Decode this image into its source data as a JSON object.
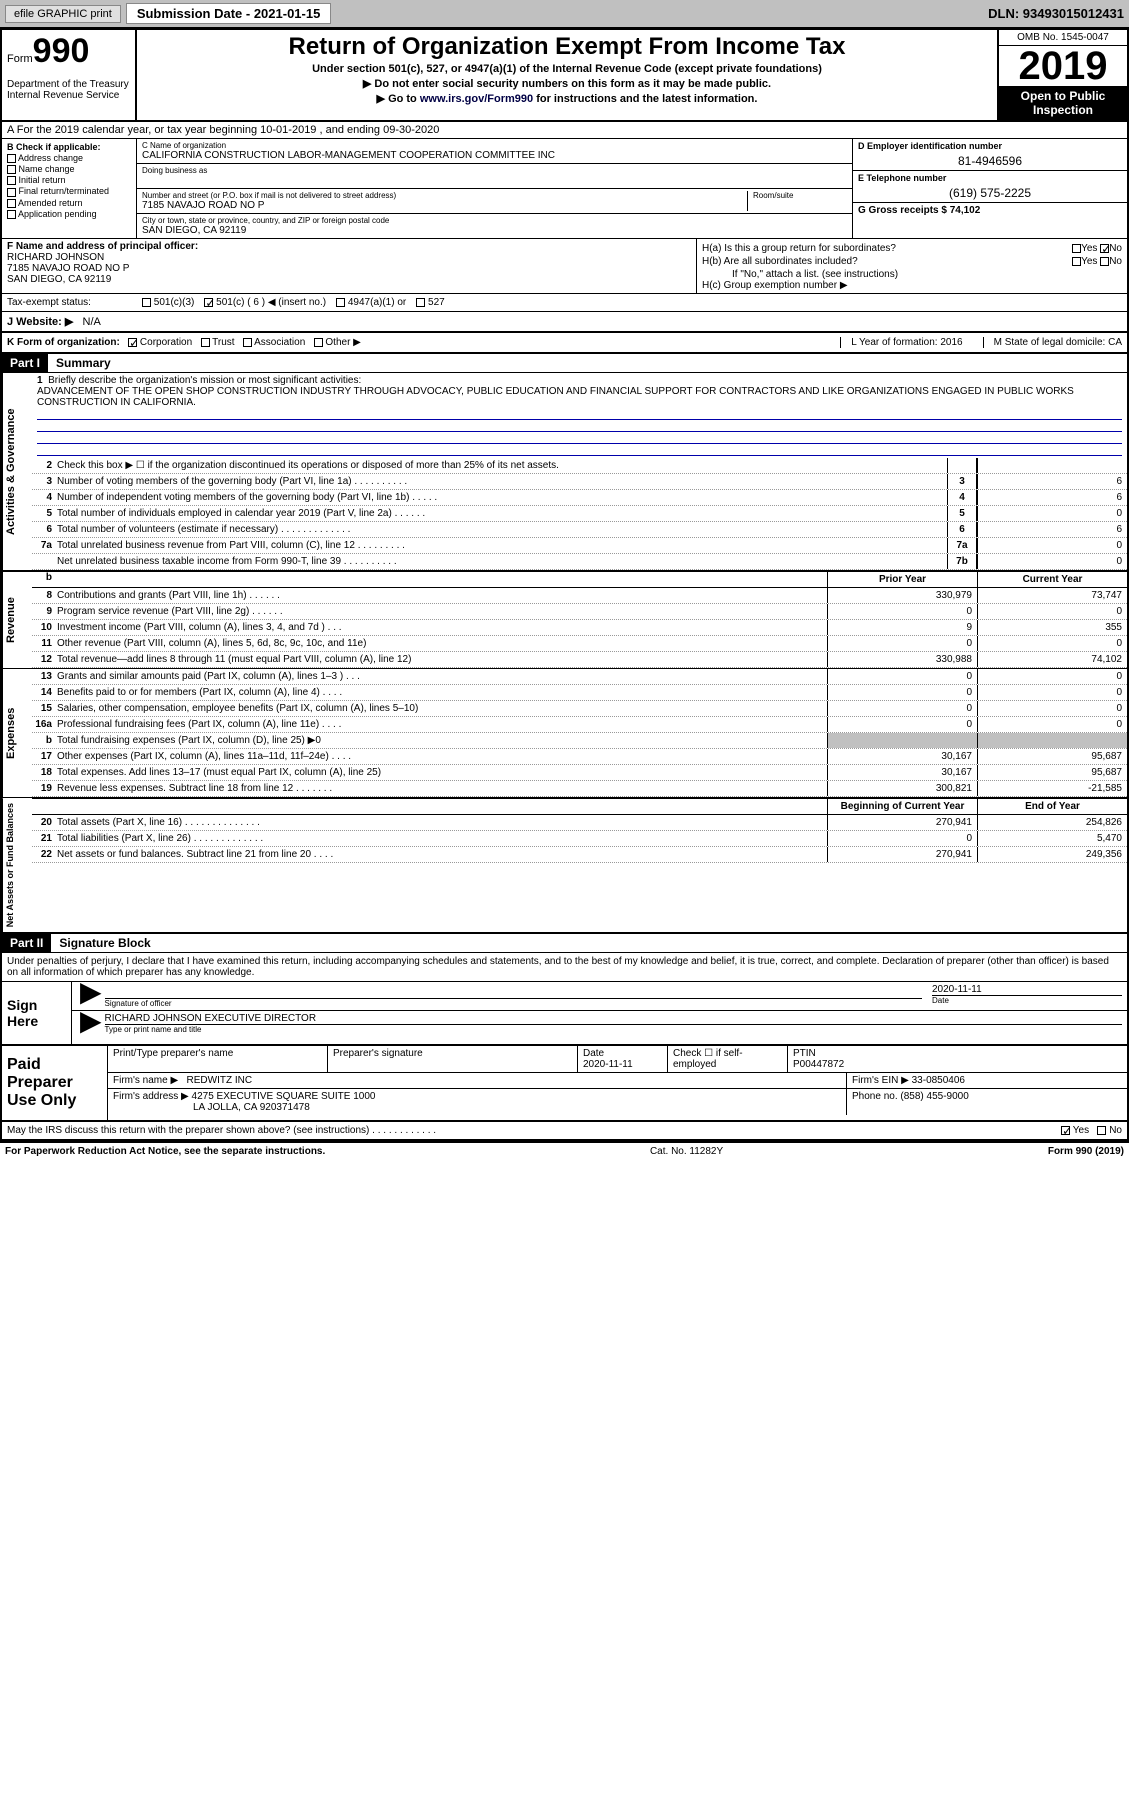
{
  "topbar": {
    "efile": "efile GRAPHIC print",
    "sub_label": "Submission Date - 2021-01-15",
    "dln": "DLN: 93493015012431"
  },
  "header": {
    "form_label": "Form",
    "form_num": "990",
    "dept": "Department of the Treasury Internal Revenue Service",
    "title": "Return of Organization Exempt From Income Tax",
    "sub1": "Under section 501(c), 527, or 4947(a)(1) of the Internal Revenue Code (except private foundations)",
    "sub2": "▶ Do not enter social security numbers on this form as it may be made public.",
    "sub3": "▶ Go to www.irs.gov/Form990 for instructions and the latest information.",
    "omb": "OMB No. 1545-0047",
    "year": "2019",
    "open": "Open to Public Inspection"
  },
  "lineA": "A For the 2019 calendar year, or tax year beginning 10-01-2019   , and ending 09-30-2020",
  "boxB": {
    "hdr": "B Check if applicable:",
    "items": [
      "Address change",
      "Name change",
      "Initial return",
      "Final return/terminated",
      "Amended return",
      "Application pending"
    ]
  },
  "boxC": {
    "name_lbl": "C Name of organization",
    "name": "CALIFORNIA CONSTRUCTION LABOR-MANAGEMENT COOPERATION COMMITTEE INC",
    "dba_lbl": "Doing business as",
    "addr_lbl": "Number and street (or P.O. box if mail is not delivered to street address)",
    "room_lbl": "Room/suite",
    "addr": "7185 NAVAJO ROAD NO P",
    "city_lbl": "City or town, state or province, country, and ZIP or foreign postal code",
    "city": "SAN DIEGO, CA  92119"
  },
  "boxD": {
    "lbl": "D Employer identification number",
    "val": "81-4946596"
  },
  "boxE": {
    "lbl": "E Telephone number",
    "val": "(619) 575-2225"
  },
  "boxG": "G Gross receipts $ 74,102",
  "boxF": {
    "lbl": "F  Name and address of principal officer:",
    "name": "RICHARD JOHNSON",
    "addr1": "7185 NAVAJO ROAD NO P",
    "addr2": "SAN DIEGO, CA  92119"
  },
  "boxH": {
    "a": "H(a)  Is this a group return for subordinates?",
    "b": "H(b)  Are all subordinates included?",
    "note": "If \"No,\" attach a list. (see instructions)",
    "c": "H(c)  Group exemption number ▶",
    "yes": "Yes",
    "no": "No"
  },
  "taxline": {
    "lbl": "Tax-exempt status:",
    "c3": "501(c)(3)",
    "c": "501(c) ( 6 ) ◀ (insert no.)",
    "a1": "4947(a)(1) or",
    "s527": "527"
  },
  "website": {
    "lbl": "J  Website: ▶",
    "val": "N/A"
  },
  "lineK": {
    "k": "K Form of organization:",
    "corp": "Corporation",
    "trust": "Trust",
    "assoc": "Association",
    "other": "Other ▶",
    "l": "L Year of formation: 2016",
    "m": "M State of legal domicile: CA"
  },
  "part1": {
    "hdr": "Part I",
    "title": "Summary"
  },
  "mission": {
    "num": "1",
    "lbl": "Briefly describe the organization's mission or most significant activities:",
    "text": "ADVANCEMENT OF THE OPEN SHOP CONSTRUCTION INDUSTRY THROUGH ADVOCACY, PUBLIC EDUCATION AND FINANCIAL SUPPORT FOR CONTRACTORS AND LIKE ORGANIZATIONS ENGAGED IN PUBLIC WORKS CONSTRUCTION IN CALIFORNIA."
  },
  "gov_lines": [
    {
      "n": "2",
      "d": "Check this box ▶ ☐  if the organization discontinued its operations or disposed of more than 25% of its net assets.",
      "box": "",
      "v": ""
    },
    {
      "n": "3",
      "d": "Number of voting members of the governing body (Part VI, line 1a)  .   .   .   .   .   .   .   .   .   .",
      "box": "3",
      "v": "6"
    },
    {
      "n": "4",
      "d": "Number of independent voting members of the governing body (Part VI, line 1b)   .   .   .   .   .",
      "box": "4",
      "v": "6"
    },
    {
      "n": "5",
      "d": "Total number of individuals employed in calendar year 2019 (Part V, line 2a)   .   .   .   .   .   .",
      "box": "5",
      "v": "0"
    },
    {
      "n": "6",
      "d": "Total number of volunteers (estimate if necessary)    .    .    .    .    .    .    .    .    .    .    .    .    .",
      "box": "6",
      "v": "6"
    },
    {
      "n": "7a",
      "d": "Total unrelated business revenue from Part VIII, column (C), line 12   .   .   .   .   .   .   .   .   .",
      "box": "7a",
      "v": "0"
    },
    {
      "n": "",
      "d": "Net unrelated business taxable income from Form 990-T, line 39   .   .   .   .   .   .   .   .   .   .",
      "box": "7b",
      "v": "0"
    }
  ],
  "yr_hdr": {
    "b": "b",
    "py": "Prior Year",
    "cy": "Current Year"
  },
  "rev_lines": [
    {
      "n": "8",
      "d": "Contributions and grants (Part VIII, line 1h)   .   .   .   .   .   .",
      "py": "330,979",
      "cy": "73,747"
    },
    {
      "n": "9",
      "d": "Program service revenue (Part VIII, line 2g)    .    .    .    .    .    .",
      "py": "0",
      "cy": "0"
    },
    {
      "n": "10",
      "d": "Investment income (Part VIII, column (A), lines 3, 4, and 7d )    .    .    .",
      "py": "9",
      "cy": "355"
    },
    {
      "n": "11",
      "d": "Other revenue (Part VIII, column (A), lines 5, 6d, 8c, 9c, 10c, and 11e)",
      "py": "0",
      "cy": "0"
    },
    {
      "n": "12",
      "d": "Total revenue—add lines 8 through 11 (must equal Part VIII, column (A), line 12)",
      "py": "330,988",
      "cy": "74,102"
    }
  ],
  "exp_lines": [
    {
      "n": "13",
      "d": "Grants and similar amounts paid (Part IX, column (A), lines 1–3 )   .   .   .",
      "py": "0",
      "cy": "0"
    },
    {
      "n": "14",
      "d": "Benefits paid to or for members (Part IX, column (A), line 4)   .   .   .   .",
      "py": "0",
      "cy": "0"
    },
    {
      "n": "15",
      "d": "Salaries, other compensation, employee benefits (Part IX, column (A), lines 5–10)",
      "py": "0",
      "cy": "0"
    },
    {
      "n": "16a",
      "d": "Professional fundraising fees (Part IX, column (A), line 11e)   .   .   .   .",
      "py": "0",
      "cy": "0"
    },
    {
      "n": "b",
      "d": "Total fundraising expenses (Part IX, column (D), line 25) ▶0",
      "py": "",
      "cy": "",
      "grey": true
    },
    {
      "n": "17",
      "d": "Other expenses (Part IX, column (A), lines 11a–11d, 11f–24e)   .   .   .   .",
      "py": "30,167",
      "cy": "95,687"
    },
    {
      "n": "18",
      "d": "Total expenses. Add lines 13–17 (must equal Part IX, column (A), line 25)",
      "py": "30,167",
      "cy": "95,687"
    },
    {
      "n": "19",
      "d": "Revenue less expenses. Subtract line 18 from line 12  .   .   .   .   .   .   .",
      "py": "300,821",
      "cy": "-21,585"
    }
  ],
  "na_hdr": {
    "boy": "Beginning of Current Year",
    "eoy": "End of Year"
  },
  "na_lines": [
    {
      "n": "20",
      "d": "Total assets (Part X, line 16)   .   .   .   .   .   .   .   .   .   .   .   .   .   .",
      "py": "270,941",
      "cy": "254,826"
    },
    {
      "n": "21",
      "d": "Total liabilities (Part X, line 26)    .    .    .    .    .    .    .    .    .    .    .    .    .",
      "py": "0",
      "cy": "5,470"
    },
    {
      "n": "22",
      "d": "Net assets or fund balances. Subtract line 21 from line 20   .   .   .   .",
      "py": "270,941",
      "cy": "249,356"
    }
  ],
  "part2": {
    "hdr": "Part II",
    "title": "Signature Block"
  },
  "sig": {
    "decl": "Under penalties of perjury, I declare that I have examined this return, including accompanying schedules and statements, and to the best of my knowledge and belief, it is true, correct, and complete. Declaration of preparer (other than officer) is based on all information of which preparer has any knowledge.",
    "here": "Sign Here",
    "sig_lbl": "Signature of officer",
    "date": "2020-11-11",
    "date_lbl": "Date",
    "name": "RICHARD JOHNSON  EXECUTIVE DIRECTOR",
    "name_lbl": "Type or print name and title"
  },
  "prep": {
    "hdr": "Paid Preparer Use Only",
    "pname_lbl": "Print/Type preparer's name",
    "psig_lbl": "Preparer's signature",
    "pdate_lbl": "Date",
    "pdate": "2020-11-11",
    "self_lbl": "Check ☐ if self-employed",
    "ptin_lbl": "PTIN",
    "ptin": "P00447872",
    "firm_lbl": "Firm's name    ▶",
    "firm": "REDWITZ INC",
    "ein_lbl": "Firm's EIN ▶",
    "ein": "33-0850406",
    "addr_lbl": "Firm's address ▶",
    "addr1": "4275 EXECUTIVE SQUARE SUITE 1000",
    "addr2": "LA JOLLA, CA  920371478",
    "phone_lbl": "Phone no.",
    "phone": "(858) 455-9000",
    "discuss": "May the IRS discuss this return with the preparer shown above? (see instructions)   .   .   .   .   .   .   .   .   .   .   .   .",
    "yes": "Yes",
    "no": "No"
  },
  "footer": {
    "left": "For Paperwork Reduction Act Notice, see the separate instructions.",
    "mid": "Cat. No. 11282Y",
    "right": "Form 990 (2019)"
  },
  "vtabs": {
    "gov": "Activities & Governance",
    "rev": "Revenue",
    "exp": "Expenses",
    "na": "Net Assets or Fund Balances"
  }
}
